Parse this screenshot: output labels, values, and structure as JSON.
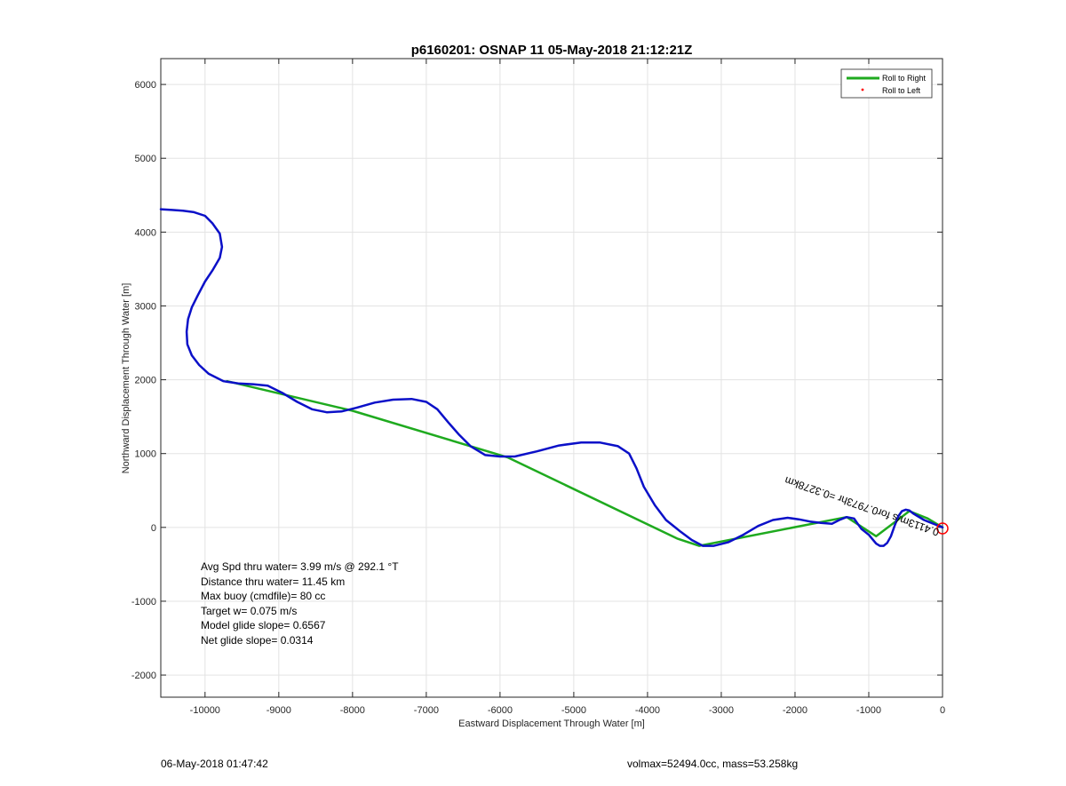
{
  "chart_data": {
    "type": "line",
    "title": "p6160201: OSNAP 11 05-May-2018 21:12:21Z",
    "xlabel": "Eastward Displacement Through Water [m]",
    "ylabel": "Northward Displacement Through Water [m]",
    "xlim": [
      -10600,
      0
    ],
    "ylim": [
      -2300,
      6350
    ],
    "xticks": [
      -10000,
      -9000,
      -8000,
      -7000,
      -6000,
      -5000,
      -4000,
      -3000,
      -2000,
      -1000,
      0
    ],
    "yticks": [
      -2000,
      -1000,
      0,
      1000,
      2000,
      3000,
      4000,
      5000,
      6000
    ],
    "grid": true,
    "legend_position": "top-right",
    "legend": [
      {
        "label": "Roll to Right",
        "color": "#1faa1f",
        "style": "line"
      },
      {
        "label": "Roll to Left",
        "color": "#ff0000",
        "style": "dot"
      }
    ],
    "series": [
      {
        "color": "#0b10c8",
        "x": [
          -10600,
          -10450,
          -10300,
          -10150,
          -10000,
          -9900,
          -9800,
          -9770,
          -9800,
          -9900,
          -10000,
          -10100,
          -10180,
          -10230,
          -10250,
          -10240,
          -10180,
          -10080,
          -9950,
          -9750,
          -9550,
          -9350,
          -9150,
          -8950,
          -8750,
          -8550,
          -8350,
          -8150,
          -7950,
          -7700,
          -7450,
          -7200,
          -7000,
          -6850,
          -6700,
          -6550,
          -6400,
          -6200,
          -6000,
          -5800,
          -5500,
          -5200,
          -4900,
          -4650,
          -4400,
          -4250,
          -4150,
          -4050,
          -3900,
          -3750,
          -3550,
          -3400,
          -3250,
          -3100,
          -2900,
          -2700,
          -2500,
          -2300,
          -2100,
          -1950,
          -1800,
          -1650,
          -1500,
          -1400,
          -1300,
          -1200,
          -1150,
          -1100,
          -1050,
          -1000,
          -950,
          -900,
          -850,
          -800,
          -750,
          -700,
          -650,
          -600,
          -550,
          -500,
          -450,
          -400,
          -350,
          -300,
          -250,
          -200,
          -150,
          -100,
          -50,
          0
        ],
        "y": [
          4310,
          4300,
          4290,
          4270,
          4220,
          4120,
          3980,
          3800,
          3650,
          3480,
          3330,
          3140,
          2980,
          2820,
          2650,
          2480,
          2330,
          2200,
          2080,
          1980,
          1950,
          1940,
          1920,
          1820,
          1700,
          1600,
          1560,
          1570,
          1620,
          1690,
          1730,
          1740,
          1700,
          1600,
          1420,
          1250,
          1100,
          980,
          960,
          960,
          1030,
          1110,
          1150,
          1150,
          1100,
          1000,
          800,
          550,
          300,
          100,
          -60,
          -170,
          -250,
          -250,
          -200,
          -100,
          20,
          100,
          130,
          110,
          80,
          60,
          50,
          100,
          140,
          120,
          50,
          -20,
          -60,
          -100,
          -160,
          -220,
          -250,
          -250,
          -210,
          -120,
          20,
          150,
          220,
          240,
          230,
          190,
          160,
          130,
          100,
          80,
          60,
          40,
          20,
          0
        ]
      },
      {
        "color": "#1faa1f",
        "x": [
          -9700,
          -8000,
          -5900,
          -3600,
          -3300,
          -1300,
          -900,
          -450,
          -200,
          0
        ],
        "y": [
          1980,
          1580,
          950,
          -150,
          -250,
          140,
          -120,
          220,
          120,
          0
        ]
      }
    ],
    "annotations": [
      {
        "text": "Avg Spd thru water=  3.99 m/s @ 292.1 °T"
      },
      {
        "text": "Distance thru water= 11.45 km"
      },
      {
        "text": "Max buoy (cmdfile)= 80 cc"
      },
      {
        "text": "Target w= 0.075 m/s"
      },
      {
        "text": "Model glide slope= 0.6567"
      },
      {
        "text": "Net glide slope= 0.0314"
      },
      {
        "text": "0.4113m/s for0.7973hr =0.3278km",
        "rotation_deg": 199
      }
    ]
  },
  "footer": {
    "left": "06-May-2018 01:47:42",
    "right": "volmax=52494.0cc, mass=53.258kg"
  }
}
